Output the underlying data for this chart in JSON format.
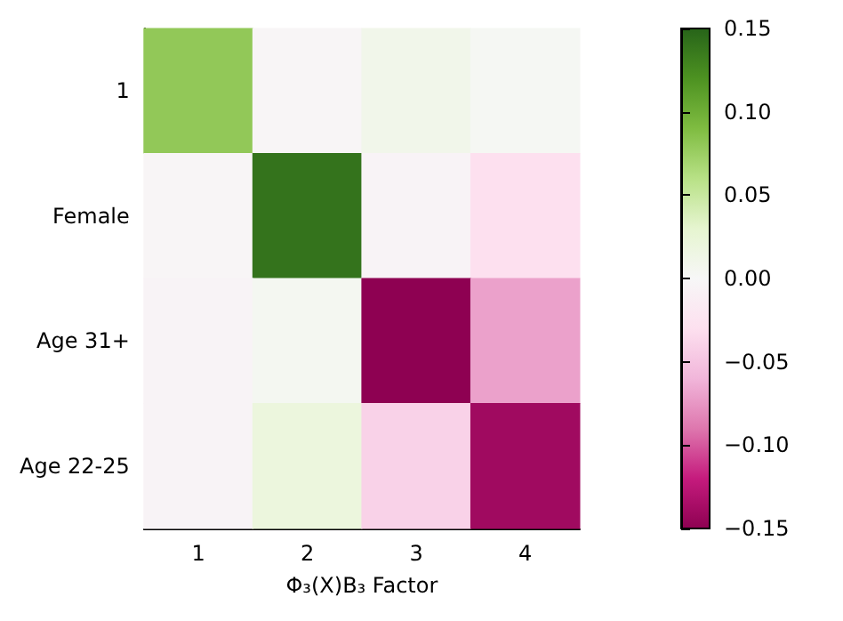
{
  "chart_data": {
    "type": "heatmap",
    "xlabel": "Φ₃(X)B₃ Factor",
    "categories": [
      "1",
      "2",
      "3",
      "4"
    ],
    "y_categories": [
      "1",
      "Female",
      "Age 31+",
      "Age 22-25"
    ],
    "cells": [
      [
        0.08,
        -0.003,
        0.01,
        0.003
      ],
      [
        -0.003,
        0.14,
        -0.005,
        -0.03
      ],
      [
        -0.005,
        0.005,
        -0.15,
        -0.07
      ],
      [
        -0.005,
        0.02,
        -0.04,
        -0.14
      ]
    ],
    "clim": [
      -0.15,
      0.15
    ],
    "cticks": [
      {
        "value": 0.15,
        "label": "0.15"
      },
      {
        "value": 0.1,
        "label": "0.10"
      },
      {
        "value": 0.05,
        "label": "0.05"
      },
      {
        "value": 0,
        "label": "0.00"
      },
      {
        "value": -0.05,
        "label": "−0.05"
      },
      {
        "value": -0.1,
        "label": "−0.10"
      },
      {
        "value": -0.15,
        "label": "−0.15"
      }
    ]
  }
}
